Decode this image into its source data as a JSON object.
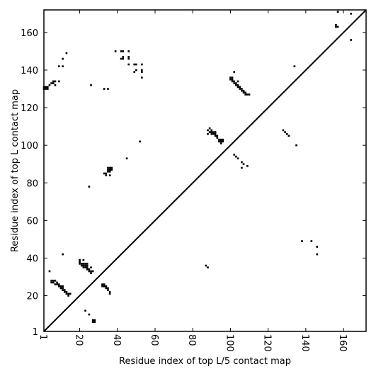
{
  "chart_data": {
    "type": "scatter",
    "title": "",
    "xlabel": "Residue index of top L/5 contact map",
    "ylabel": "Residue index of top L contact map",
    "xlim": [
      1,
      172
    ],
    "ylim": [
      1,
      172
    ],
    "xticks": [
      1,
      20,
      40,
      60,
      80,
      100,
      120,
      140,
      160
    ],
    "yticks": [
      1,
      20,
      40,
      60,
      80,
      100,
      120,
      140,
      160
    ],
    "diagonal": true,
    "grid": false,
    "legend": "none",
    "marker_color": "#000000",
    "series": [
      {
        "points_upper": [
          [
            1,
            130
          ],
          [
            1,
            131
          ],
          [
            2,
            130
          ],
          [
            2,
            131
          ],
          [
            3,
            130
          ],
          [
            3,
            131
          ],
          [
            4,
            132
          ],
          [
            5,
            133
          ],
          [
            6,
            133
          ],
          [
            6,
            134
          ],
          [
            7,
            134
          ],
          [
            7,
            132
          ],
          [
            9,
            134
          ],
          [
            9,
            142
          ],
          [
            11,
            142
          ],
          [
            11,
            146
          ],
          [
            13,
            149
          ],
          [
            26,
            132
          ],
          [
            33,
            130
          ],
          [
            35,
            130
          ],
          [
            39,
            150
          ],
          [
            42,
            146
          ],
          [
            42,
            150
          ],
          [
            43,
            146
          ],
          [
            43,
            147
          ],
          [
            43,
            150
          ],
          [
            46,
            146
          ],
          [
            46,
            147
          ],
          [
            46,
            150
          ],
          [
            46,
            143
          ],
          [
            49,
            143
          ],
          [
            49,
            139
          ],
          [
            50,
            140
          ],
          [
            50,
            143
          ],
          [
            53,
            143
          ],
          [
            53,
            139
          ],
          [
            53,
            140
          ],
          [
            53,
            136
          ],
          [
            52,
            102
          ],
          [
            45,
            93
          ],
          [
            25,
            78
          ],
          [
            33,
            85
          ],
          [
            34,
            84
          ],
          [
            34,
            85
          ],
          [
            35,
            86
          ],
          [
            35,
            87
          ],
          [
            35,
            88
          ],
          [
            36,
            86
          ],
          [
            36,
            87
          ],
          [
            36,
            88
          ],
          [
            37,
            87
          ],
          [
            37,
            88
          ],
          [
            36,
            84
          ],
          [
            88,
            106
          ],
          [
            88,
            108
          ],
          [
            89,
            107
          ],
          [
            89,
            109
          ],
          [
            90,
            106
          ],
          [
            90,
            107
          ],
          [
            90,
            108
          ],
          [
            91,
            106
          ],
          [
            91,
            107
          ],
          [
            92,
            105
          ],
          [
            92,
            106
          ],
          [
            92,
            107
          ],
          [
            93,
            104
          ],
          [
            93,
            105
          ],
          [
            94,
            103
          ],
          [
            94,
            102
          ],
          [
            95,
            102
          ],
          [
            95,
            101
          ],
          [
            95,
            103
          ],
          [
            96,
            102
          ],
          [
            96,
            103
          ],
          [
            100,
            135
          ],
          [
            100,
            136
          ],
          [
            101,
            134
          ],
          [
            101,
            135
          ],
          [
            101,
            136
          ],
          [
            102,
            133
          ],
          [
            102,
            134
          ],
          [
            102,
            139
          ],
          [
            103,
            132
          ],
          [
            103,
            133
          ],
          [
            104,
            131
          ],
          [
            104,
            132
          ],
          [
            104,
            134
          ],
          [
            105,
            130
          ],
          [
            105,
            131
          ],
          [
            106,
            129
          ],
          [
            106,
            130
          ],
          [
            107,
            128
          ],
          [
            107,
            129
          ],
          [
            108,
            127
          ],
          [
            108,
            128
          ],
          [
            109,
            127
          ],
          [
            110,
            127
          ],
          [
            102,
            95
          ],
          [
            103,
            94
          ],
          [
            104,
            93
          ],
          [
            106,
            91
          ],
          [
            106,
            88
          ],
          [
            107,
            90
          ],
          [
            109,
            89
          ],
          [
            128,
            108
          ],
          [
            129,
            107
          ],
          [
            130,
            106
          ],
          [
            131,
            105
          ],
          [
            135,
            100
          ],
          [
            134,
            142
          ],
          [
            156,
            163
          ],
          [
            156,
            164
          ],
          [
            157,
            163
          ],
          [
            157,
            171
          ],
          [
            164,
            170
          ],
          [
            164,
            156
          ]
        ],
        "points_lower": [
          [
            4,
            33
          ],
          [
            5,
            27
          ],
          [
            5,
            28
          ],
          [
            6,
            27
          ],
          [
            6,
            28
          ],
          [
            7,
            26
          ],
          [
            7,
            28
          ],
          [
            8,
            26
          ],
          [
            8,
            27
          ],
          [
            9,
            26
          ],
          [
            9,
            25
          ],
          [
            10,
            24
          ],
          [
            10,
            25
          ],
          [
            11,
            23
          ],
          [
            11,
            24
          ],
          [
            11,
            25
          ],
          [
            12,
            22
          ],
          [
            12,
            23
          ],
          [
            13,
            21
          ],
          [
            13,
            22
          ],
          [
            14,
            20
          ],
          [
            14,
            21
          ],
          [
            15,
            21
          ],
          [
            11,
            42
          ],
          [
            20,
            37
          ],
          [
            20,
            38
          ],
          [
            20,
            39
          ],
          [
            21,
            36
          ],
          [
            21,
            37
          ],
          [
            22,
            35
          ],
          [
            22,
            36
          ],
          [
            22,
            37
          ],
          [
            22,
            39
          ],
          [
            23,
            35
          ],
          [
            23,
            36
          ],
          [
            23,
            37
          ],
          [
            24,
            34
          ],
          [
            24,
            35
          ],
          [
            24,
            36
          ],
          [
            24,
            37
          ],
          [
            25,
            33
          ],
          [
            25,
            34
          ],
          [
            26,
            32
          ],
          [
            26,
            33
          ],
          [
            26,
            35
          ],
          [
            27,
            33
          ],
          [
            32,
            25
          ],
          [
            32,
            26
          ],
          [
            33,
            25
          ],
          [
            33,
            26
          ],
          [
            34,
            24
          ],
          [
            34,
            25
          ],
          [
            35,
            23
          ],
          [
            35,
            24
          ],
          [
            36,
            22
          ],
          [
            36,
            21
          ],
          [
            23,
            12
          ],
          [
            25,
            10
          ],
          [
            27,
            7
          ],
          [
            27,
            6
          ],
          [
            28,
            7
          ],
          [
            28,
            6
          ],
          [
            87,
            36
          ],
          [
            88,
            35
          ],
          [
            138,
            49
          ],
          [
            143,
            49
          ],
          [
            146,
            46
          ],
          [
            146,
            42
          ]
        ]
      }
    ]
  }
}
